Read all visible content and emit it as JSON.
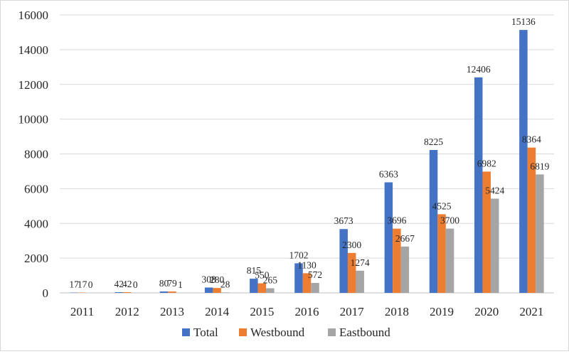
{
  "chart_data": {
    "type": "bar",
    "title": "",
    "xlabel": "",
    "ylabel": "",
    "ylim": [
      0,
      16000
    ],
    "yticks": [
      0,
      2000,
      4000,
      6000,
      8000,
      10000,
      12000,
      14000,
      16000
    ],
    "grid": "horizontal",
    "legend_position": "bottom",
    "categories": [
      "2011",
      "2012",
      "2013",
      "2014",
      "2015",
      "2016",
      "2017",
      "2018",
      "2019",
      "2020",
      "2021"
    ],
    "series": [
      {
        "name": "Total",
        "color": "#4472C4",
        "values": [
          17,
          42,
          80,
          308,
          815,
          1702,
          3673,
          6363,
          8225,
          12406,
          15136
        ]
      },
      {
        "name": "Westbound",
        "color": "#ED7D31",
        "values": [
          17,
          42,
          79,
          280,
          550,
          1130,
          2300,
          3696,
          4525,
          6982,
          8364
        ]
      },
      {
        "name": "Eastbound",
        "color": "#A5A5A5",
        "values": [
          0,
          0,
          1,
          28,
          265,
          572,
          1274,
          2667,
          3700,
          5424,
          6819
        ]
      }
    ]
  }
}
